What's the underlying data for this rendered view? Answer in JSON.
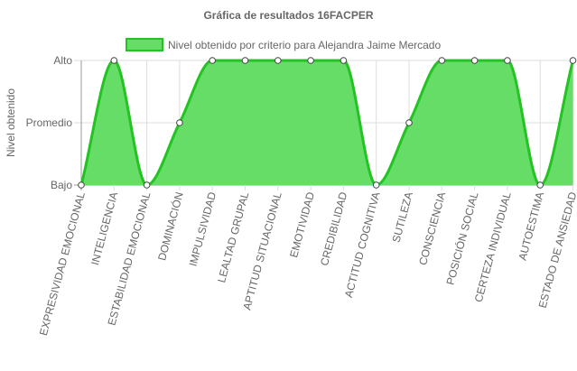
{
  "chart_data": {
    "type": "line",
    "title": "Gráfica de resultados 16FACPER",
    "xlabel": "",
    "ylabel": "Nivel obtenido",
    "categories": [
      "EXPRESIVIDAD EMOCIONAL",
      "INTELIGENCIA",
      "ESTABILIDAD EMOCIONAL",
      "DOMINACIÓN",
      "IMPULSIVIDAD",
      "LEALTAD GRUPAL",
      "APTITUD SITUACIONAL",
      "EMOTIVIDAD",
      "CREDIBILIDAD",
      "ACTITUD COGNITIVA",
      "SUTILEZA",
      "CONSCIENCIA",
      "POSICIÓN SOCIAL",
      "CERTEZA INDIVIDUAL",
      "AUTOESTIMA",
      "ESTADO DE ANSIEDAD"
    ],
    "y_ticks": [
      "Bajo",
      "Promedio",
      "Alto"
    ],
    "ylim": [
      0,
      2
    ],
    "grid": true,
    "legend_position": "top",
    "fill": true,
    "colors": {
      "line": "#22c322",
      "fill": "#66dd66",
      "point_fill": "#ffffff",
      "point_stroke": "#444444",
      "grid": "#dddddd",
      "axis": "#999999"
    },
    "series": [
      {
        "name": "Nivel obtenido por criterio para Alejandra Jaime Mercado",
        "values": [
          0,
          2,
          0,
          1,
          2,
          2,
          2,
          2,
          2,
          0,
          1,
          2,
          2,
          2,
          0,
          2
        ]
      }
    ]
  }
}
